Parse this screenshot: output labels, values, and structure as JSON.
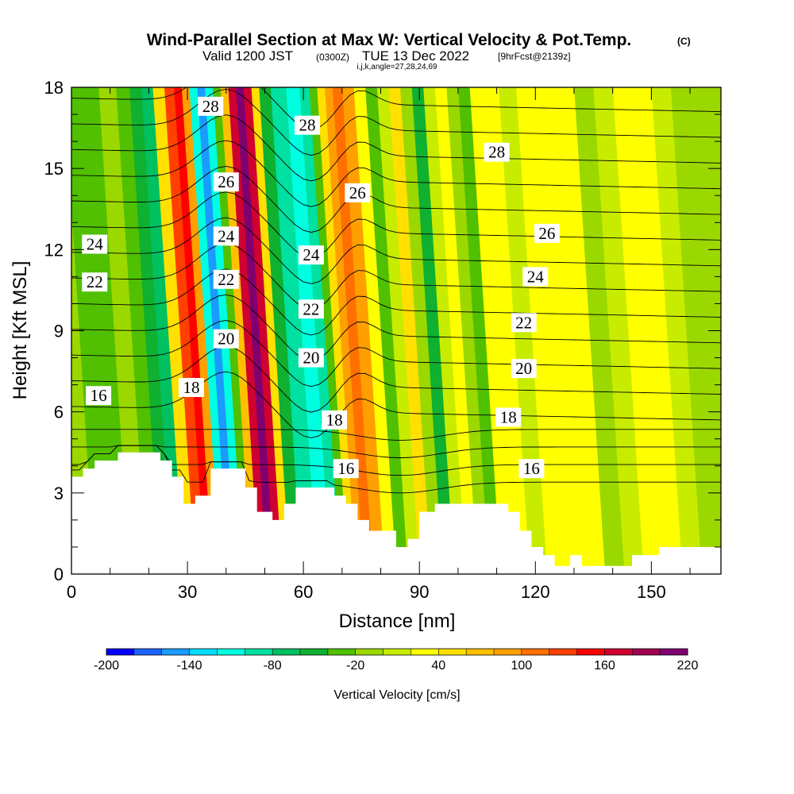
{
  "header": {
    "title": "Wind-Parallel Section at Max W: Vertical Velocity & Pot.Temp.",
    "copyright": "(C)",
    "subtitle_valid": "Valid 1200 JST",
    "subtitle_zulu": "(0300Z)",
    "subtitle_date": "TUE 13 Dec 2022",
    "subtitle_fcst": "[9hrFcst@2139z]",
    "subtitle_indices": "i,j,k,angle=27,28,24,69"
  },
  "colors": {
    "palette": [
      "#0000ff",
      "#1c64ff",
      "#1a9bff",
      "#00dcff",
      "#00ffe0",
      "#00e0a0",
      "#00c060",
      "#10b030",
      "#50c000",
      "#9bd800",
      "#c8ec00",
      "#ffff00",
      "#ffe000",
      "#ffc000",
      "#ffa000",
      "#ff7000",
      "#ff4000",
      "#ff0000",
      "#d00030",
      "#a00050",
      "#800070"
    ],
    "terrain": "#ffffff",
    "contour": "#000000"
  },
  "chart_data": {
    "type": "heatmap",
    "title": "Wind-Parallel Section at Max W: Vertical Velocity & Pot.Temp.",
    "xlabel": "Distance [nm]",
    "ylabel": "Height [Kft MSL]",
    "xlim": [
      0,
      168
    ],
    "ylim": [
      0,
      18
    ],
    "xticks": [
      0,
      30,
      60,
      90,
      120,
      150
    ],
    "yticks": [
      0,
      3,
      6,
      9,
      12,
      15,
      18
    ],
    "colorbar": {
      "label": "Vertical Velocity [cm/s]",
      "min": -200,
      "max": 220,
      "step": 20,
      "ticks": [
        -200,
        -140,
        -80,
        -20,
        40,
        100,
        160,
        220
      ]
    },
    "contour_field": "potential temperature",
    "contour_levels": [
      16,
      17,
      18,
      19,
      20,
      21,
      22,
      23,
      24,
      25,
      26,
      27,
      28
    ],
    "contour_labels": [
      {
        "text": "28",
        "x": 36,
        "y": 17.3
      },
      {
        "text": "28",
        "x": 61,
        "y": 16.6
      },
      {
        "text": "28",
        "x": 110,
        "y": 15.6
      },
      {
        "text": "26",
        "x": 40,
        "y": 14.5
      },
      {
        "text": "26",
        "x": 74,
        "y": 14.1
      },
      {
        "text": "26",
        "x": 123,
        "y": 12.6
      },
      {
        "text": "24",
        "x": 6,
        "y": 12.2
      },
      {
        "text": "24",
        "x": 40,
        "y": 12.5
      },
      {
        "text": "24",
        "x": 62,
        "y": 11.8
      },
      {
        "text": "24",
        "x": 120,
        "y": 11.0
      },
      {
        "text": "22",
        "x": 6,
        "y": 10.8
      },
      {
        "text": "22",
        "x": 40,
        "y": 10.9
      },
      {
        "text": "22",
        "x": 62,
        "y": 9.8
      },
      {
        "text": "22",
        "x": 117,
        "y": 9.3
      },
      {
        "text": "20",
        "x": 40,
        "y": 8.7
      },
      {
        "text": "20",
        "x": 62,
        "y": 8.0
      },
      {
        "text": "20",
        "x": 117,
        "y": 7.6
      },
      {
        "text": "18",
        "x": 31,
        "y": 6.9
      },
      {
        "text": "18",
        "x": 68,
        "y": 5.7
      },
      {
        "text": "18",
        "x": 113,
        "y": 5.8
      },
      {
        "text": "16",
        "x": 7,
        "y": 6.6
      },
      {
        "text": "16",
        "x": 71,
        "y": 3.9
      },
      {
        "text": "16",
        "x": 119,
        "y": 3.9
      }
    ],
    "w_profiles": [
      {
        "x": 0,
        "w": -20
      },
      {
        "x": 5,
        "w": -35
      },
      {
        "x": 9,
        "w": -25
      },
      {
        "x": 14,
        "w": -20
      },
      {
        "x": 18,
        "w": -30
      },
      {
        "x": 21,
        "w": -60
      },
      {
        "x": 24,
        "w": -80
      },
      {
        "x": 27,
        "w": 40
      },
      {
        "x": 30,
        "w": 120
      },
      {
        "x": 32,
        "w": 150
      },
      {
        "x": 34,
        "w": 80
      },
      {
        "x": 36,
        "w": -120
      },
      {
        "x": 38,
        "w": -160
      },
      {
        "x": 40,
        "w": -110
      },
      {
        "x": 42,
        "w": -40
      },
      {
        "x": 44,
        "w": 60
      },
      {
        "x": 46,
        "w": 170
      },
      {
        "x": 48,
        "w": 210
      },
      {
        "x": 50,
        "w": 160
      },
      {
        "x": 52,
        "w": 40
      },
      {
        "x": 54,
        "w": -60
      },
      {
        "x": 58,
        "w": -90
      },
      {
        "x": 62,
        "w": -110
      },
      {
        "x": 65,
        "w": -90
      },
      {
        "x": 67,
        "w": -40
      },
      {
        "x": 69,
        "w": 40
      },
      {
        "x": 71,
        "w": 80
      },
      {
        "x": 73,
        "w": 110
      },
      {
        "x": 76,
        "w": 80
      },
      {
        "x": 79,
        "w": 20
      },
      {
        "x": 82,
        "w": -30
      },
      {
        "x": 85,
        "w": 0
      },
      {
        "x": 88,
        "w": 40
      },
      {
        "x": 91,
        "w": -20
      },
      {
        "x": 94,
        "w": -50
      },
      {
        "x": 97,
        "w": 10
      },
      {
        "x": 100,
        "w": 30
      },
      {
        "x": 103,
        "w": -20
      },
      {
        "x": 106,
        "w": -40
      },
      {
        "x": 109,
        "w": 20
      },
      {
        "x": 113,
        "w": 25
      },
      {
        "x": 117,
        "w": 15
      },
      {
        "x": 122,
        "w": 25
      },
      {
        "x": 127,
        "w": 35
      },
      {
        "x": 132,
        "w": 20
      },
      {
        "x": 137,
        "w": -20
      },
      {
        "x": 142,
        "w": 10
      },
      {
        "x": 147,
        "w": 25
      },
      {
        "x": 152,
        "w": 30
      },
      {
        "x": 157,
        "w": 0
      },
      {
        "x": 162,
        "w": -20
      },
      {
        "x": 168,
        "w": -10
      }
    ],
    "terrain_heights": [
      {
        "x": 0,
        "y": 3.6
      },
      {
        "x": 3,
        "y": 3.6
      },
      {
        "x": 3,
        "y": 3.9
      },
      {
        "x": 6,
        "y": 3.9
      },
      {
        "x": 6,
        "y": 4.2
      },
      {
        "x": 12,
        "y": 4.2
      },
      {
        "x": 12,
        "y": 4.5
      },
      {
        "x": 23,
        "y": 4.5
      },
      {
        "x": 23,
        "y": 4.2
      },
      {
        "x": 26,
        "y": 4.2
      },
      {
        "x": 26,
        "y": 3.6
      },
      {
        "x": 29,
        "y": 3.6
      },
      {
        "x": 29,
        "y": 2.6
      },
      {
        "x": 32,
        "y": 2.6
      },
      {
        "x": 32,
        "y": 2.9
      },
      {
        "x": 36,
        "y": 2.9
      },
      {
        "x": 36,
        "y": 3.9
      },
      {
        "x": 45,
        "y": 3.9
      },
      {
        "x": 45,
        "y": 3.2
      },
      {
        "x": 48,
        "y": 3.2
      },
      {
        "x": 48,
        "y": 2.3
      },
      {
        "x": 52,
        "y": 2.3
      },
      {
        "x": 52,
        "y": 2.0
      },
      {
        "x": 55,
        "y": 2.0
      },
      {
        "x": 55,
        "y": 2.6
      },
      {
        "x": 58,
        "y": 2.6
      },
      {
        "x": 58,
        "y": 3.2
      },
      {
        "x": 68,
        "y": 3.2
      },
      {
        "x": 68,
        "y": 2.9
      },
      {
        "x": 71,
        "y": 2.9
      },
      {
        "x": 71,
        "y": 2.6
      },
      {
        "x": 74,
        "y": 2.6
      },
      {
        "x": 74,
        "y": 2.0
      },
      {
        "x": 77,
        "y": 2.0
      },
      {
        "x": 77,
        "y": 1.6
      },
      {
        "x": 84,
        "y": 1.6
      },
      {
        "x": 84,
        "y": 1.0
      },
      {
        "x": 87,
        "y": 1.0
      },
      {
        "x": 87,
        "y": 1.3
      },
      {
        "x": 90,
        "y": 1.3
      },
      {
        "x": 90,
        "y": 2.3
      },
      {
        "x": 94,
        "y": 2.3
      },
      {
        "x": 94,
        "y": 2.6
      },
      {
        "x": 113,
        "y": 2.6
      },
      {
        "x": 113,
        "y": 2.3
      },
      {
        "x": 116,
        "y": 2.3
      },
      {
        "x": 116,
        "y": 1.6
      },
      {
        "x": 119,
        "y": 1.6
      },
      {
        "x": 119,
        "y": 1.0
      },
      {
        "x": 122,
        "y": 1.0
      },
      {
        "x": 122,
        "y": 0.7
      },
      {
        "x": 125,
        "y": 0.7
      },
      {
        "x": 125,
        "y": 0.3
      },
      {
        "x": 129,
        "y": 0.3
      },
      {
        "x": 129,
        "y": 0.7
      },
      {
        "x": 132,
        "y": 0.7
      },
      {
        "x": 132,
        "y": 0.3
      },
      {
        "x": 145,
        "y": 0.3
      },
      {
        "x": 145,
        "y": 0.7
      },
      {
        "x": 152,
        "y": 0.7
      },
      {
        "x": 152,
        "y": 1.0
      },
      {
        "x": 168,
        "y": 1.0
      }
    ]
  }
}
